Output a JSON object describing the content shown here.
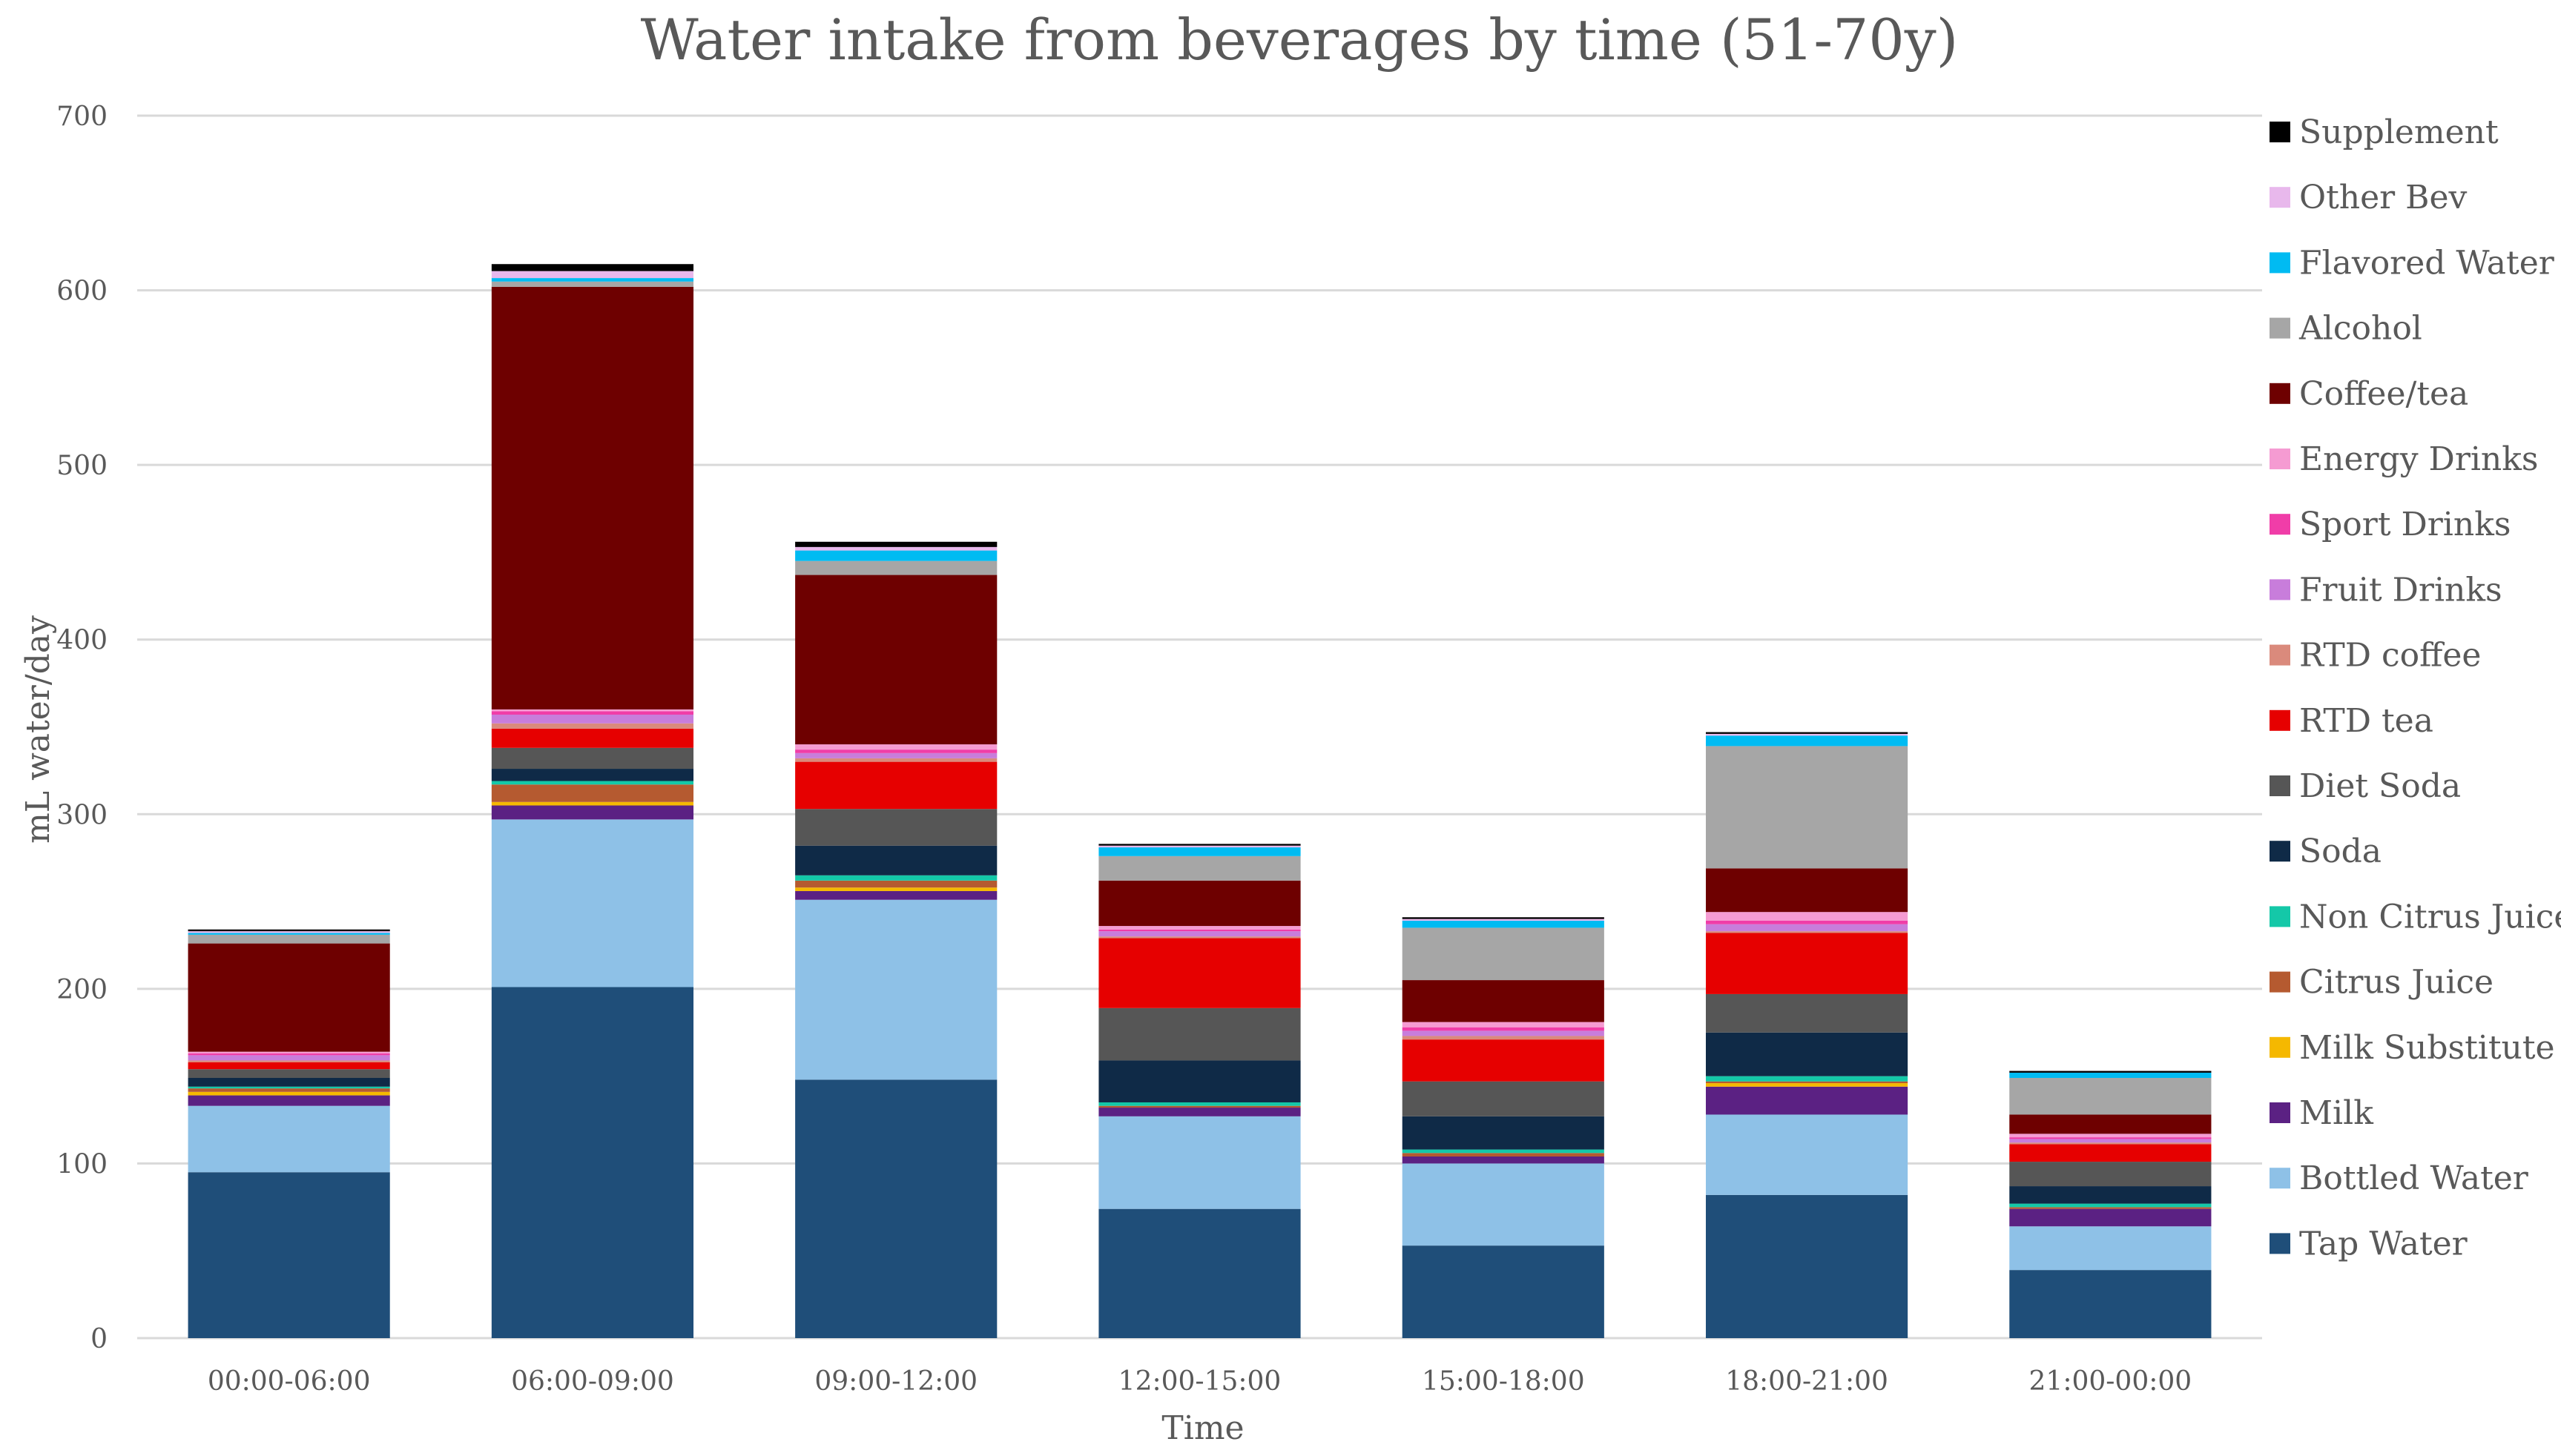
{
  "chart_data": {
    "type": "bar",
    "stacked": true,
    "title": "Water intake from beverages by time (51-70y)",
    "xlabel": "Time",
    "ylabel": "mL water/day",
    "ylim": [
      0,
      700
    ],
    "yticks": [
      0,
      100,
      200,
      300,
      400,
      500,
      600,
      700
    ],
    "grid": true,
    "legend_position": "right",
    "categories": [
      "00:00-06:00",
      "06:00-09:00",
      "09:00-12:00",
      "12:00-15:00",
      "15:00-18:00",
      "18:00-21:00",
      "21:00-00:00"
    ],
    "series": [
      {
        "name": "Tap Water",
        "color": "#1F4E79",
        "values": [
          95,
          201,
          148,
          74,
          53,
          82,
          39
        ]
      },
      {
        "name": "Bottled Water",
        "color": "#8EC1E7",
        "values": [
          38,
          96,
          103,
          53,
          47,
          46,
          25
        ]
      },
      {
        "name": "Milk",
        "color": "#5B2183",
        "values": [
          6,
          8,
          5,
          5,
          4,
          16,
          10
        ]
      },
      {
        "name": "Milk Substitute",
        "color": "#F5B800",
        "values": [
          2,
          2,
          2,
          0,
          0,
          2,
          0
        ]
      },
      {
        "name": "Citrus Juice",
        "color": "#B55A30",
        "values": [
          2,
          10,
          4,
          1,
          2,
          1,
          1
        ]
      },
      {
        "name": "Non Citrus Juice",
        "color": "#14C8A8",
        "values": [
          1,
          2,
          3,
          2,
          2,
          3,
          2
        ]
      },
      {
        "name": "Soda",
        "color": "#0F2A47",
        "values": [
          5,
          7,
          17,
          24,
          19,
          25,
          10
        ]
      },
      {
        "name": "Diet Soda",
        "color": "#565656",
        "values": [
          5,
          12,
          21,
          30,
          20,
          22,
          14
        ]
      },
      {
        "name": "RTD tea",
        "color": "#E60000",
        "values": [
          4,
          11,
          27,
          40,
          24,
          35,
          10
        ]
      },
      {
        "name": "RTD coffee",
        "color": "#DA8A7C",
        "values": [
          1,
          3,
          2,
          1,
          2,
          1,
          1
        ]
      },
      {
        "name": "Fruit Drinks",
        "color": "#C87DDB",
        "values": [
          3,
          5,
          3,
          3,
          3,
          4,
          2
        ]
      },
      {
        "name": "Sport Drinks",
        "color": "#F03DA8",
        "values": [
          1,
          2,
          2,
          1,
          2,
          2,
          1
        ]
      },
      {
        "name": "Energy Drinks",
        "color": "#F59BD2",
        "values": [
          1,
          1,
          3,
          2,
          3,
          5,
          2
        ]
      },
      {
        "name": "Coffee/tea",
        "color": "#6E0000",
        "values": [
          62,
          242,
          97,
          26,
          24,
          25,
          11
        ]
      },
      {
        "name": "Alcohol",
        "color": "#A6A6A6",
        "values": [
          5,
          3,
          8,
          14,
          30,
          70,
          21
        ]
      },
      {
        "name": "Flavored Water",
        "color": "#00BBF2",
        "values": [
          1,
          2,
          6,
          5,
          4,
          6,
          3
        ]
      },
      {
        "name": "Other Bev",
        "color": "#E8B8EC",
        "values": [
          1,
          4,
          2,
          1,
          1,
          1,
          0
        ]
      },
      {
        "name": "Supplement",
        "color": "#000000",
        "values": [
          1,
          4,
          3,
          1,
          1,
          1,
          1
        ]
      }
    ]
  }
}
